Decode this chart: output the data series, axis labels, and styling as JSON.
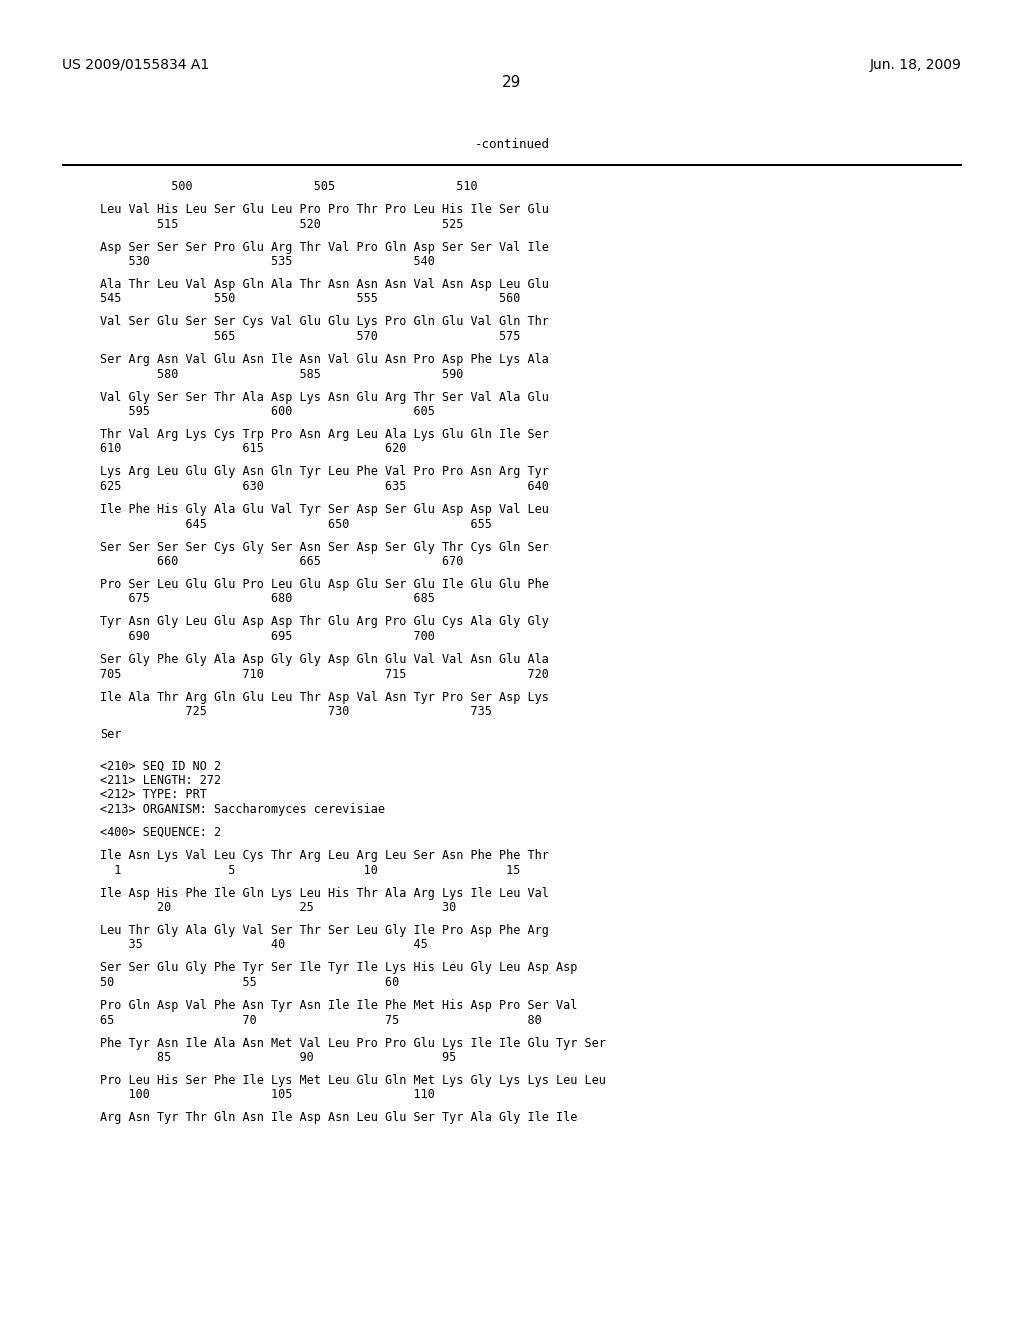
{
  "header_left": "US 2009/0155834 A1",
  "header_right": "Jun. 18, 2009",
  "page_number": "29",
  "continued_label": "-continued",
  "background_color": "#ffffff",
  "text_color": "#000000",
  "lines": [
    {
      "type": "seq",
      "text": "          500                 505                 510"
    },
    {
      "type": "blank"
    },
    {
      "type": "seq",
      "text": "Leu Val His Leu Ser Glu Leu Pro Pro Thr Pro Leu His Ile Ser Glu"
    },
    {
      "type": "seq",
      "text": "        515                 520                 525"
    },
    {
      "type": "blank"
    },
    {
      "type": "seq",
      "text": "Asp Ser Ser Ser Pro Glu Arg Thr Val Pro Gln Asp Ser Ser Val Ile"
    },
    {
      "type": "seq",
      "text": "    530                 535                 540"
    },
    {
      "type": "blank"
    },
    {
      "type": "seq",
      "text": "Ala Thr Leu Val Asp Gln Ala Thr Asn Asn Asn Val Asn Asp Leu Glu"
    },
    {
      "type": "seq",
      "text": "545             550                 555                 560"
    },
    {
      "type": "blank"
    },
    {
      "type": "seq",
      "text": "Val Ser Glu Ser Ser Cys Val Glu Glu Lys Pro Gln Glu Val Gln Thr"
    },
    {
      "type": "seq",
      "text": "                565                 570                 575"
    },
    {
      "type": "blank"
    },
    {
      "type": "seq",
      "text": "Ser Arg Asn Val Glu Asn Ile Asn Val Glu Asn Pro Asp Phe Lys Ala"
    },
    {
      "type": "seq",
      "text": "        580                 585                 590"
    },
    {
      "type": "blank"
    },
    {
      "type": "seq",
      "text": "Val Gly Ser Ser Thr Ala Asp Lys Asn Glu Arg Thr Ser Val Ala Glu"
    },
    {
      "type": "seq",
      "text": "    595                 600                 605"
    },
    {
      "type": "blank"
    },
    {
      "type": "seq",
      "text": "Thr Val Arg Lys Cys Trp Pro Asn Arg Leu Ala Lys Glu Gln Ile Ser"
    },
    {
      "type": "seq",
      "text": "610                 615                 620"
    },
    {
      "type": "blank"
    },
    {
      "type": "seq",
      "text": "Lys Arg Leu Glu Gly Asn Gln Tyr Leu Phe Val Pro Pro Asn Arg Tyr"
    },
    {
      "type": "seq",
      "text": "625                 630                 635                 640"
    },
    {
      "type": "blank"
    },
    {
      "type": "seq",
      "text": "Ile Phe His Gly Ala Glu Val Tyr Ser Asp Ser Glu Asp Asp Val Leu"
    },
    {
      "type": "seq",
      "text": "            645                 650                 655"
    },
    {
      "type": "blank"
    },
    {
      "type": "seq",
      "text": "Ser Ser Ser Ser Cys Gly Ser Asn Ser Asp Ser Gly Thr Cys Gln Ser"
    },
    {
      "type": "seq",
      "text": "        660                 665                 670"
    },
    {
      "type": "blank"
    },
    {
      "type": "seq",
      "text": "Pro Ser Leu Glu Glu Pro Leu Glu Asp Glu Ser Glu Ile Glu Glu Phe"
    },
    {
      "type": "seq",
      "text": "    675                 680                 685"
    },
    {
      "type": "blank"
    },
    {
      "type": "seq",
      "text": "Tyr Asn Gly Leu Glu Asp Asp Thr Glu Arg Pro Glu Cys Ala Gly Gly"
    },
    {
      "type": "seq",
      "text": "    690                 695                 700"
    },
    {
      "type": "blank"
    },
    {
      "type": "seq",
      "text": "Ser Gly Phe Gly Ala Asp Gly Gly Asp Gln Glu Val Val Asn Glu Ala"
    },
    {
      "type": "seq",
      "text": "705                 710                 715                 720"
    },
    {
      "type": "blank"
    },
    {
      "type": "seq",
      "text": "Ile Ala Thr Arg Gln Glu Leu Thr Asp Val Asn Tyr Pro Ser Asp Lys"
    },
    {
      "type": "seq",
      "text": "            725                 730                 735"
    },
    {
      "type": "blank"
    },
    {
      "type": "seq",
      "text": "Ser"
    },
    {
      "type": "blank"
    },
    {
      "type": "blank"
    },
    {
      "type": "seq",
      "text": "<210> SEQ ID NO 2"
    },
    {
      "type": "seq",
      "text": "<211> LENGTH: 272"
    },
    {
      "type": "seq",
      "text": "<212> TYPE: PRT"
    },
    {
      "type": "seq",
      "text": "<213> ORGANISM: Saccharomyces cerevisiae"
    },
    {
      "type": "blank"
    },
    {
      "type": "seq",
      "text": "<400> SEQUENCE: 2"
    },
    {
      "type": "blank"
    },
    {
      "type": "seq",
      "text": "Ile Asn Lys Val Leu Cys Thr Arg Leu Arg Leu Ser Asn Phe Phe Thr"
    },
    {
      "type": "seq",
      "text": "  1               5                  10                  15"
    },
    {
      "type": "blank"
    },
    {
      "type": "seq",
      "text": "Ile Asp His Phe Ile Gln Lys Leu His Thr Ala Arg Lys Ile Leu Val"
    },
    {
      "type": "seq",
      "text": "        20                  25                  30"
    },
    {
      "type": "blank"
    },
    {
      "type": "seq",
      "text": "Leu Thr Gly Ala Gly Val Ser Thr Ser Leu Gly Ile Pro Asp Phe Arg"
    },
    {
      "type": "seq",
      "text": "    35                  40                  45"
    },
    {
      "type": "blank"
    },
    {
      "type": "seq",
      "text": "Ser Ser Glu Gly Phe Tyr Ser Ile Tyr Ile Lys His Leu Gly Leu Asp Asp"
    },
    {
      "type": "seq",
      "text": "50                  55                  60"
    },
    {
      "type": "blank"
    },
    {
      "type": "seq",
      "text": "Pro Gln Asp Val Phe Asn Tyr Asn Ile Ile Phe Met His Asp Pro Ser Val"
    },
    {
      "type": "seq",
      "text": "65                  70                  75                  80"
    },
    {
      "type": "blank"
    },
    {
      "type": "seq",
      "text": "Phe Tyr Asn Ile Ala Asn Met Val Leu Pro Pro Glu Lys Ile Ile Glu Tyr Ser"
    },
    {
      "type": "seq",
      "text": "        85                  90                  95"
    },
    {
      "type": "blank"
    },
    {
      "type": "seq",
      "text": "Pro Leu His Ser Phe Ile Lys Met Leu Glu Gln Met Lys Gly Lys Lys Leu Leu"
    },
    {
      "type": "seq",
      "text": "    100                 105                 110"
    },
    {
      "type": "blank"
    },
    {
      "type": "seq",
      "text": "Arg Asn Tyr Thr Gln Asn Ile Asp Asn Leu Glu Ser Tyr Ala Gly Ile Ile"
    }
  ]
}
